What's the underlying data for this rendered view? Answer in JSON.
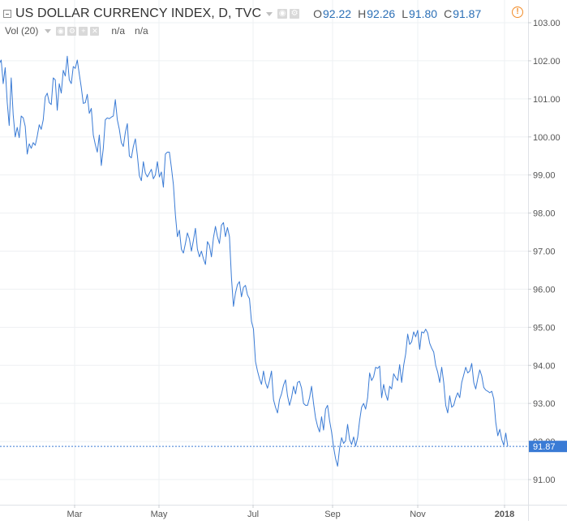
{
  "header": {
    "symbol_title": "US DOLLAR CURRENCY INDEX, D, TVC",
    "ohlc": [
      {
        "key": "O",
        "value": "92.22"
      },
      {
        "key": "H",
        "value": "92.26"
      },
      {
        "key": "L",
        "value": "91.80"
      },
      {
        "key": "C",
        "value": "91.87"
      }
    ],
    "volume_label": "Vol (20)",
    "volume_values": [
      "n/a",
      "n/a"
    ],
    "alert_symbol": "!"
  },
  "chart_data": {
    "type": "line",
    "title": "US DOLLAR CURRENCY INDEX, D, TVC",
    "xlabel": "",
    "ylabel": "",
    "ylim": [
      90.7,
      103.2
    ],
    "y_ticks": [
      "103.00",
      "102.00",
      "101.00",
      "100.00",
      "99.00",
      "98.00",
      "97.00",
      "96.00",
      "95.00",
      "94.00",
      "93.00",
      "92.00",
      "91.00"
    ],
    "x_ticks": [
      "Mar",
      "May",
      "Jul",
      "Sep",
      "Nov",
      "2018"
    ],
    "last_price_label": "91.87",
    "last_price": 91.87,
    "grid": true,
    "colors": {
      "line": "#3a7bd5",
      "price_label_bg": "#3a7bd5",
      "grid": "#eef0f3"
    },
    "series": [
      {
        "values": [
          101.92,
          102.02,
          101.4,
          101.82,
          100.92,
          100.3,
          101.55,
          100.58,
          100.0,
          100.25,
          99.98,
          100.55,
          100.5,
          100.28,
          99.55,
          99.82,
          99.7,
          99.85,
          99.78,
          100.02,
          100.32,
          100.2,
          100.45,
          101.05,
          101.15,
          100.9,
          100.85,
          101.55,
          101.5,
          100.7,
          101.4,
          101.15,
          101.75,
          101.6,
          102.12,
          101.5,
          101.4,
          101.85,
          101.8,
          102.02,
          101.65,
          101.3,
          100.88,
          100.9,
          101.12,
          100.62,
          100.75,
          100.05,
          99.8,
          99.6,
          100.05,
          99.25,
          99.7,
          100.45,
          100.5,
          100.48,
          100.52,
          100.55,
          100.98,
          100.45,
          100.2,
          99.85,
          99.75,
          100.12,
          100.35,
          99.5,
          99.45,
          99.75,
          99.95,
          99.52,
          98.98,
          98.85,
          99.35,
          99.05,
          98.95,
          99.05,
          99.15,
          98.9,
          99.0,
          99.35,
          98.95,
          99.08,
          98.68,
          99.55,
          99.6,
          99.6,
          99.2,
          98.75,
          97.95,
          97.38,
          97.55,
          97.05,
          96.95,
          97.2,
          97.48,
          97.32,
          97.0,
          97.28,
          97.6,
          97.05,
          96.85,
          97.0,
          96.8,
          96.65,
          97.25,
          97.15,
          96.85,
          97.35,
          97.65,
          97.38,
          97.2,
          97.68,
          97.75,
          97.38,
          97.62,
          97.38,
          96.3,
          95.55,
          95.9,
          96.12,
          96.2,
          95.8,
          96.05,
          96.1,
          95.85,
          95.75,
          95.15,
          94.95,
          94.1,
          93.85,
          93.65,
          93.5,
          93.85,
          93.55,
          93.4,
          93.6,
          93.85,
          93.1,
          92.9,
          92.75,
          93.1,
          93.25,
          93.48,
          93.62,
          93.2,
          92.95,
          93.15,
          93.45,
          93.25,
          93.55,
          93.58,
          93.4,
          93.0,
          92.95,
          92.95,
          93.15,
          93.45,
          93.0,
          92.62,
          92.4,
          92.25,
          92.65,
          92.3,
          92.85,
          92.95,
          92.55,
          92.25,
          91.85,
          91.55,
          91.35,
          91.82,
          92.1,
          91.95,
          92.02,
          92.45,
          92.05,
          91.92,
          92.12,
          91.88,
          92.1,
          92.55,
          92.9,
          93.0,
          92.85,
          93.15,
          93.8,
          93.6,
          93.7,
          93.95,
          93.92,
          93.98,
          93.15,
          93.5,
          93.25,
          93.08,
          93.45,
          93.38,
          93.78,
          93.68,
          93.6,
          94.02,
          93.55,
          94.0,
          94.3,
          94.82,
          94.55,
          94.62,
          94.88,
          94.75,
          94.92,
          94.42,
          94.88,
          94.85,
          94.95,
          94.85,
          94.58,
          94.45,
          94.35,
          94.0,
          93.82,
          93.55,
          93.95,
          93.55,
          92.95,
          92.75,
          93.2,
          92.9,
          92.95,
          93.15,
          93.28,
          93.15,
          93.55,
          93.75,
          93.95,
          93.8,
          93.85,
          94.05,
          93.55,
          93.38,
          93.65,
          93.88,
          93.72,
          93.42,
          93.35,
          93.32,
          93.28,
          93.32,
          93.12,
          92.5,
          92.15,
          92.32,
          92.05,
          91.9,
          92.22,
          91.87
        ]
      }
    ]
  }
}
